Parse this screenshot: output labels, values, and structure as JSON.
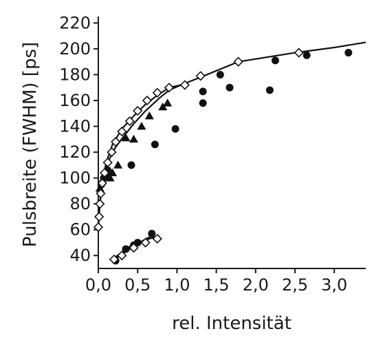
{
  "chart_data": {
    "type": "scatter",
    "xlabel": "rel. Intensität",
    "ylabel": "Pulsbreite (FWHM) [ps]",
    "xlim": [
      0,
      3.4
    ],
    "ylim": [
      30,
      225
    ],
    "x_ticks": [
      "0,0",
      "0,5",
      "1,0",
      "1,5",
      "2,0",
      "2,5",
      "3,0"
    ],
    "x_tick_values": [
      0,
      0.5,
      1.0,
      1.5,
      2.0,
      2.5,
      3.0
    ],
    "y_ticks": [
      "40",
      "60",
      "80",
      "100",
      "120",
      "140",
      "160",
      "180",
      "200",
      "220"
    ],
    "y_tick_values": [
      40,
      60,
      80,
      100,
      120,
      140,
      160,
      180,
      200,
      220
    ],
    "grid": false,
    "series": [
      {
        "marker": "filled-circle",
        "points": [
          [
            0.04,
            95
          ],
          [
            0.07,
            100
          ],
          [
            0.1,
            103
          ],
          [
            0.12,
            106
          ],
          [
            0.42,
            110
          ],
          [
            0.72,
            126
          ],
          [
            0.98,
            138
          ],
          [
            1.33,
            158
          ],
          [
            1.33,
            167
          ],
          [
            1.55,
            180
          ],
          [
            1.67,
            170
          ],
          [
            2.18,
            168
          ],
          [
            2.25,
            191
          ],
          [
            2.65,
            195
          ],
          [
            3.18,
            197
          ],
          [
            0.22,
            36
          ],
          [
            0.35,
            45
          ],
          [
            0.45,
            48
          ],
          [
            0.5,
            50
          ],
          [
            0.68,
            57
          ]
        ]
      },
      {
        "marker": "filled-triangle",
        "points": [
          [
            0.02,
            92
          ],
          [
            0.05,
            98
          ],
          [
            0.08,
            102
          ],
          [
            0.1,
            105
          ],
          [
            0.15,
            100
          ],
          [
            0.18,
            104
          ],
          [
            0.25,
            110
          ],
          [
            0.35,
            131
          ],
          [
            0.45,
            130
          ],
          [
            0.55,
            140
          ],
          [
            0.65,
            148
          ],
          [
            0.82,
            155
          ],
          [
            0.88,
            158
          ]
        ]
      },
      {
        "marker": "open-diamond",
        "points": [
          [
            0.0,
            62
          ],
          [
            0.01,
            70
          ],
          [
            0.02,
            80
          ],
          [
            0.03,
            88
          ],
          [
            0.05,
            96
          ],
          [
            0.08,
            104
          ],
          [
            0.12,
            112
          ],
          [
            0.17,
            120
          ],
          [
            0.22,
            128
          ],
          [
            0.3,
            136
          ],
          [
            0.4,
            144
          ],
          [
            0.5,
            152
          ],
          [
            0.62,
            160
          ],
          [
            0.75,
            166
          ],
          [
            0.9,
            170
          ],
          [
            1.1,
            172
          ],
          [
            1.3,
            179
          ],
          [
            1.78,
            190
          ],
          [
            2.55,
            197
          ],
          [
            0.2,
            37
          ],
          [
            0.3,
            40
          ],
          [
            0.45,
            46
          ],
          [
            0.6,
            50
          ],
          [
            0.75,
            53
          ]
        ]
      }
    ],
    "curves": [
      {
        "name": "",
        "points": [
          [
            0.0,
            60
          ],
          [
            0.01,
            70
          ],
          [
            0.02,
            80
          ],
          [
            0.04,
            90
          ],
          [
            0.07,
            100
          ],
          [
            0.1,
            108
          ],
          [
            0.15,
            116
          ],
          [
            0.22,
            124
          ],
          [
            0.32,
            132
          ],
          [
            0.45,
            142
          ],
          [
            0.6,
            152
          ],
          [
            0.78,
            162
          ],
          [
            0.9,
            168
          ],
          [
            1.05,
            172
          ],
          [
            1.3,
            178
          ],
          [
            1.78,
            190
          ],
          [
            2.5,
            197
          ],
          [
            3.0,
            201
          ],
          [
            3.4,
            205
          ]
        ]
      },
      {
        "name": "",
        "points": [
          [
            0.0,
            62
          ],
          [
            0.02,
            80
          ],
          [
            0.05,
            96
          ],
          [
            0.1,
            112
          ],
          [
            0.18,
            126
          ],
          [
            0.3,
            138
          ],
          [
            0.45,
            148
          ],
          [
            0.6,
            157
          ],
          [
            0.75,
            164
          ],
          [
            0.9,
            170
          ],
          [
            1.05,
            172
          ]
        ]
      },
      {
        "name": "",
        "points": [
          [
            0.2,
            37
          ],
          [
            0.35,
            43
          ],
          [
            0.5,
            49
          ],
          [
            0.65,
            53
          ],
          [
            0.78,
            55
          ]
        ]
      },
      {
        "name": "",
        "points": [
          [
            0.22,
            39
          ],
          [
            0.4,
            47
          ],
          [
            0.55,
            51
          ],
          [
            0.7,
            56
          ]
        ]
      }
    ]
  }
}
